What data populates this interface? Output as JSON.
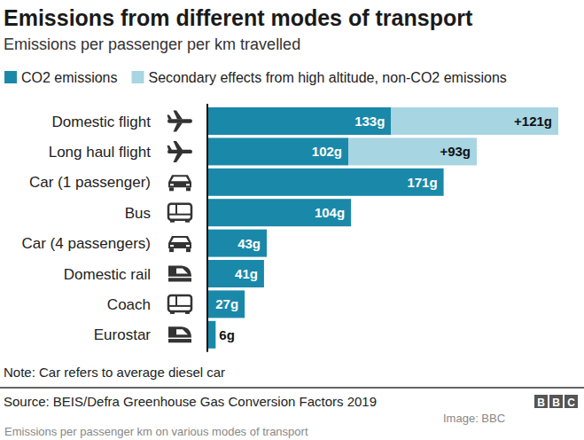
{
  "chart_data": {
    "type": "bar",
    "orientation": "horizontal",
    "stacked": true,
    "data_labels": true,
    "tick_labels": "y",
    "grid": false,
    "legend": "top-left",
    "title": "Emissions from different modes of transport",
    "subtitle": "Emissions per passenger per km travelled",
    "categories": [
      "Domestic flight",
      "Long haul flight",
      "Car (1 passenger)",
      "Bus",
      "Car (4 passengers)",
      "Domestic rail",
      "Coach",
      "Eurostar"
    ],
    "series": [
      {
        "name": "CO2 emissions",
        "color": "#1a89a9",
        "values": [
          133,
          102,
          171,
          104,
          43,
          41,
          27,
          6
        ],
        "value_labels": [
          "133g",
          "102g",
          "171g",
          "104g",
          "43g",
          "41g",
          "27g",
          "6g"
        ]
      },
      {
        "name": "Secondary effects from high altitude, non-CO2 emissions",
        "color": "#a8d5e2",
        "values": [
          121,
          93,
          null,
          null,
          null,
          null,
          null,
          null
        ],
        "value_labels": [
          "+121g",
          "+93g",
          null,
          null,
          null,
          null,
          null,
          null
        ]
      }
    ],
    "xlim": [
      0,
      254
    ],
    "note": "Note: Car refers to average diesel car",
    "source": "Source: BEIS/Defra Greenhouse Gas Conversion Factors 2019",
    "logo": "BBC",
    "credit": "Image: BBC",
    "caption": "Emissions per passenger km on various modes of transport"
  }
}
